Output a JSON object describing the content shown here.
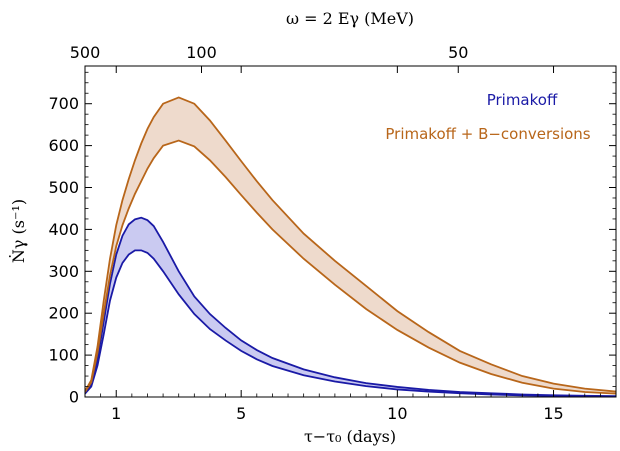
{
  "chart_data": {
    "type": "area",
    "xlabel": "τ−τ₀ (days)",
    "ylabel": "Ṅγ (s⁻¹)",
    "top_axis_label": "ω = 2 Eγ (MeV)",
    "xlim": [
      0,
      17
    ],
    "ylim": [
      0,
      790
    ],
    "x_ticks": [
      1,
      5,
      10,
      15
    ],
    "x_tick_labels": [
      "1",
      "5",
      "10",
      "15"
    ],
    "y_ticks": [
      0,
      100,
      200,
      300,
      400,
      500,
      600,
      700
    ],
    "y_tick_labels": [
      "0",
      "100",
      "200",
      "300",
      "400",
      "500",
      "600",
      "700"
    ],
    "top_ticks_x": [
      0.0,
      3.73,
      11.95
    ],
    "top_tick_labels": [
      "500",
      "100",
      "50"
    ],
    "legend_position": "top-right",
    "grid": false,
    "x": [
      0.0,
      0.2,
      0.4,
      0.6,
      0.8,
      1.0,
      1.2,
      1.4,
      1.6,
      1.8,
      2.0,
      2.2,
      2.5,
      3.0,
      3.5,
      4.0,
      4.5,
      5.0,
      5.5,
      6.0,
      7.0,
      8.0,
      9.0,
      10.0,
      11.0,
      12.0,
      13.0,
      14.0,
      15.0,
      16.0,
      17.0
    ],
    "series": [
      {
        "name": "Primakoff",
        "color": "#1a1aa6",
        "fill": "rgba(90,90,210,0.32)",
        "upper": [
          10,
          30,
          90,
          180,
          270,
          340,
          385,
          412,
          424,
          428,
          422,
          408,
          370,
          300,
          240,
          198,
          165,
          135,
          112,
          93,
          66,
          47,
          33,
          24,
          17,
          12,
          9,
          6,
          4,
          3,
          2
        ],
        "lower": [
          8,
          25,
          75,
          150,
          230,
          285,
          320,
          340,
          350,
          350,
          344,
          330,
          300,
          245,
          198,
          162,
          135,
          110,
          90,
          74,
          52,
          37,
          26,
          18,
          13,
          9,
          6,
          4,
          3,
          2,
          1
        ]
      },
      {
        "name": "Primakoff + B−conversions",
        "color": "#b8661a",
        "fill": "rgba(205,150,110,0.35)",
        "upper": [
          14,
          40,
          120,
          230,
          330,
          410,
          470,
          520,
          565,
          605,
          640,
          668,
          700,
          715,
          700,
          660,
          612,
          563,
          515,
          470,
          390,
          325,
          265,
          205,
          155,
          110,
          78,
          50,
          32,
          20,
          13
        ],
        "lower": [
          12,
          35,
          105,
          200,
          290,
          360,
          410,
          450,
          485,
          515,
          545,
          570,
          600,
          612,
          598,
          565,
          525,
          482,
          440,
          400,
          330,
          268,
          210,
          160,
          118,
          82,
          55,
          34,
          20,
          12,
          8
        ]
      }
    ]
  }
}
